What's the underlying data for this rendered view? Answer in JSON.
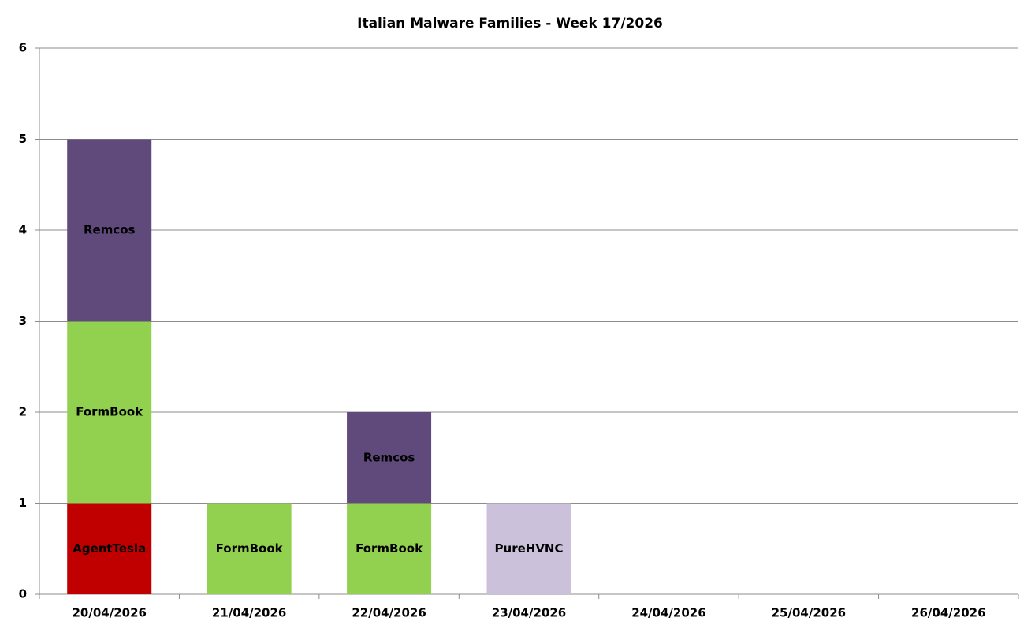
{
  "chart_data": {
    "type": "stacked_bar",
    "title": "Italian Malware Families - Week 17/2026",
    "categories": [
      "20/04/2026",
      "21/04/2026",
      "22/04/2026",
      "23/04/2026",
      "24/04/2026",
      "25/04/2026",
      "26/04/2026"
    ],
    "series": [
      {
        "name": "AgentTesla",
        "color": "#c00000",
        "values": [
          1,
          0,
          0,
          0,
          0,
          0,
          0
        ]
      },
      {
        "name": "FormBook",
        "color": "#92d050",
        "values": [
          2,
          1,
          1,
          0,
          0,
          0,
          0
        ]
      },
      {
        "name": "Remcos",
        "color": "#604a7b",
        "values": [
          2,
          0,
          1,
          0,
          0,
          0,
          0
        ]
      },
      {
        "name": "PureHVNC",
        "color": "#ccc1da",
        "values": [
          0,
          0,
          0,
          1,
          0,
          0,
          0
        ]
      }
    ],
    "ylim": [
      0,
      6
    ],
    "yticks": [
      0,
      1,
      2,
      3,
      4,
      5,
      6
    ],
    "grid": true
  }
}
